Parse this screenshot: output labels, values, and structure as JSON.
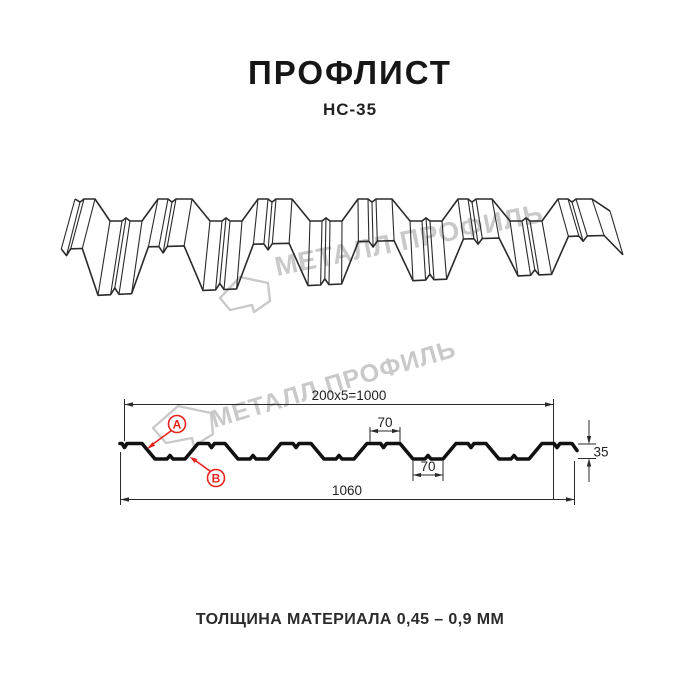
{
  "header": {
    "title": "ПРОФЛИСТ",
    "subtitle": "НС-35"
  },
  "watermark": {
    "text": "МЕТАЛЛ ПРОФИЛЬ",
    "logo": "metall-profil-logo",
    "color": "#c9c9c9"
  },
  "drawing": {
    "profile_3d": {
      "description": "corrugated-sheet-3d-wireframe"
    },
    "cross_section": {
      "dim_top_modules": "200x5=1000",
      "dim_top_flange": "70",
      "dim_bottom_flange": "70",
      "dim_overall_width": "1060",
      "dim_height": "35",
      "marker_a": "A",
      "marker_b": "B",
      "accent_color": "#e8231e",
      "line_color": "#1a1a1a"
    }
  },
  "footer": {
    "note": "ТОЛЩИНА МАТЕРИАЛА 0,45 – 0,9 ММ"
  }
}
